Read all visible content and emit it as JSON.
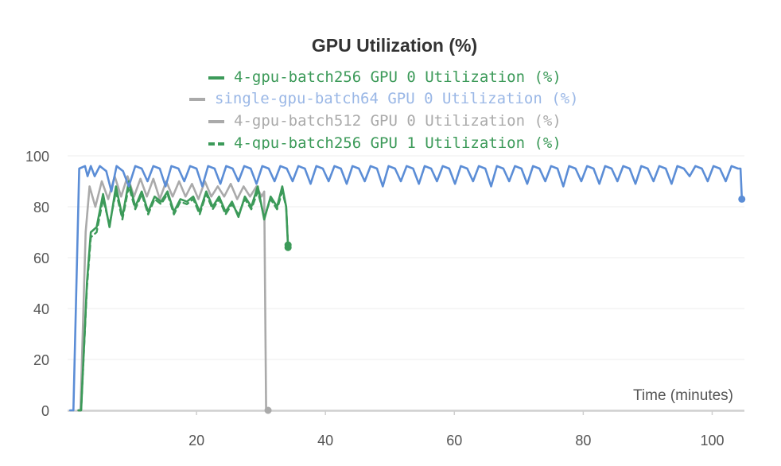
{
  "chart_data": {
    "type": "line",
    "title": "GPU Utilization (%)",
    "xlabel": "Time (minutes)",
    "ylabel": "",
    "xlim": [
      0,
      105
    ],
    "ylim": [
      0,
      100
    ],
    "xticks": [
      20,
      40,
      60,
      80,
      100
    ],
    "yticks": [
      0,
      20,
      40,
      60,
      80,
      100
    ],
    "grid": true,
    "legend_position": "top",
    "series": [
      {
        "name": "4-gpu-batch256 GPU 0 Utilization (%)",
        "color": "#3c9a59",
        "dash": "solid",
        "points": [
          [
            1.7,
            0
          ],
          [
            2.1,
            0
          ],
          [
            3.0,
            50
          ],
          [
            3.6,
            70
          ],
          [
            4.5,
            72
          ],
          [
            5.5,
            85
          ],
          [
            6.5,
            72
          ],
          [
            7.5,
            88
          ],
          [
            8.5,
            76
          ],
          [
            9.5,
            90
          ],
          [
            10.5,
            80
          ],
          [
            11.5,
            86
          ],
          [
            12.5,
            78
          ],
          [
            13.5,
            84
          ],
          [
            14.5,
            82
          ],
          [
            15.5,
            86
          ],
          [
            16.5,
            78
          ],
          [
            17.5,
            83
          ],
          [
            18.5,
            82
          ],
          [
            19.5,
            84
          ],
          [
            20.5,
            78
          ],
          [
            21.5,
            86
          ],
          [
            22.5,
            80
          ],
          [
            23.5,
            84
          ],
          [
            24.5,
            78
          ],
          [
            25.5,
            82
          ],
          [
            26.5,
            76
          ],
          [
            27.5,
            84
          ],
          [
            28.5,
            80
          ],
          [
            29.5,
            88
          ],
          [
            30.5,
            75
          ],
          [
            31.5,
            84
          ],
          [
            32.5,
            80
          ],
          [
            33.3,
            88
          ],
          [
            33.9,
            80
          ],
          [
            34.2,
            64
          ]
        ]
      },
      {
        "name": "single-gpu-batch64 GPU 0 Utilization (%)",
        "color": "#5b8dd6",
        "dash": "solid",
        "points": [
          [
            0.4,
            0
          ],
          [
            0.9,
            0
          ],
          [
            1.8,
            95
          ],
          [
            2.7,
            96
          ],
          [
            3.1,
            92
          ],
          [
            3.6,
            96
          ],
          [
            4.2,
            92
          ],
          [
            5.0,
            96
          ],
          [
            6.0,
            94
          ],
          [
            6.8,
            86
          ],
          [
            7.6,
            96
          ],
          [
            8.6,
            94
          ],
          [
            9.5,
            88
          ],
          [
            10.5,
            96
          ],
          [
            11.5,
            95
          ],
          [
            12.4,
            90
          ],
          [
            13.3,
            96
          ],
          [
            14.3,
            95
          ],
          [
            15.2,
            88
          ],
          [
            16.1,
            96
          ],
          [
            17.2,
            95
          ],
          [
            18.1,
            90
          ],
          [
            19.0,
            96
          ],
          [
            20.0,
            95
          ],
          [
            20.9,
            88
          ],
          [
            21.8,
            96
          ],
          [
            22.8,
            95
          ],
          [
            23.7,
            89
          ],
          [
            24.6,
            96
          ],
          [
            25.6,
            95
          ],
          [
            26.5,
            90
          ],
          [
            27.4,
            96
          ],
          [
            28.4,
            95
          ],
          [
            29.3,
            89
          ],
          [
            30.2,
            96
          ],
          [
            31.2,
            95
          ],
          [
            32.1,
            90
          ],
          [
            33.0,
            96
          ],
          [
            34.0,
            95
          ],
          [
            34.9,
            90
          ],
          [
            35.8,
            96
          ],
          [
            36.8,
            95
          ],
          [
            37.7,
            89
          ],
          [
            38.6,
            96
          ],
          [
            39.6,
            95
          ],
          [
            40.5,
            90
          ],
          [
            41.4,
            96
          ],
          [
            42.4,
            95
          ],
          [
            43.3,
            89
          ],
          [
            44.2,
            96
          ],
          [
            45.2,
            95
          ],
          [
            46.1,
            90
          ],
          [
            47.0,
            96
          ],
          [
            48.0,
            95
          ],
          [
            48.9,
            88
          ],
          [
            49.8,
            96
          ],
          [
            50.8,
            95
          ],
          [
            51.7,
            90
          ],
          [
            52.6,
            96
          ],
          [
            53.6,
            95
          ],
          [
            54.5,
            89
          ],
          [
            55.4,
            96
          ],
          [
            56.4,
            95
          ],
          [
            57.3,
            90
          ],
          [
            58.2,
            96
          ],
          [
            59.2,
            95
          ],
          [
            60.1,
            89
          ],
          [
            61.0,
            96
          ],
          [
            62.0,
            95
          ],
          [
            62.9,
            90
          ],
          [
            63.8,
            96
          ],
          [
            64.8,
            95
          ],
          [
            65.7,
            88
          ],
          [
            66.6,
            96
          ],
          [
            67.6,
            95
          ],
          [
            68.5,
            90
          ],
          [
            69.4,
            96
          ],
          [
            70.4,
            95
          ],
          [
            71.3,
            89
          ],
          [
            72.2,
            96
          ],
          [
            73.2,
            95
          ],
          [
            74.1,
            90
          ],
          [
            75.0,
            96
          ],
          [
            76.0,
            95
          ],
          [
            76.9,
            88
          ],
          [
            77.8,
            96
          ],
          [
            78.8,
            95
          ],
          [
            79.7,
            90
          ],
          [
            80.6,
            96
          ],
          [
            81.6,
            95
          ],
          [
            82.5,
            89
          ],
          [
            83.4,
            96
          ],
          [
            84.4,
            95
          ],
          [
            85.3,
            90
          ],
          [
            86.2,
            96
          ],
          [
            87.2,
            95
          ],
          [
            88.1,
            89
          ],
          [
            89.0,
            96
          ],
          [
            90.0,
            95
          ],
          [
            90.9,
            90
          ],
          [
            91.8,
            96
          ],
          [
            92.8,
            95
          ],
          [
            93.7,
            89
          ],
          [
            94.6,
            96
          ],
          [
            95.6,
            95
          ],
          [
            96.5,
            92
          ],
          [
            97.4,
            96
          ],
          [
            98.4,
            95
          ],
          [
            99.3,
            90
          ],
          [
            100.2,
            96
          ],
          [
            101.2,
            95
          ],
          [
            102.1,
            90
          ],
          [
            103.0,
            96
          ],
          [
            104.0,
            95
          ],
          [
            104.4,
            95
          ],
          [
            104.6,
            83
          ]
        ]
      },
      {
        "name": "4-gpu-batch512 GPU 0 Utilization (%)",
        "color": "#aaaaaa",
        "dash": "solid",
        "points": [
          [
            1.6,
            0
          ],
          [
            2.0,
            0
          ],
          [
            2.8,
            70
          ],
          [
            3.4,
            88
          ],
          [
            4.3,
            80
          ],
          [
            5.3,
            90
          ],
          [
            6.3,
            83
          ],
          [
            7.3,
            92
          ],
          [
            8.3,
            84
          ],
          [
            9.3,
            92
          ],
          [
            10.3,
            84
          ],
          [
            11.3,
            91
          ],
          [
            12.3,
            84
          ],
          [
            13.3,
            91
          ],
          [
            14.3,
            83
          ],
          [
            15.3,
            90
          ],
          [
            16.3,
            84
          ],
          [
            17.3,
            90
          ],
          [
            18.3,
            84
          ],
          [
            19.3,
            89
          ],
          [
            20.3,
            83
          ],
          [
            21.3,
            90
          ],
          [
            22.3,
            84
          ],
          [
            23.3,
            88
          ],
          [
            24.3,
            84
          ],
          [
            25.3,
            89
          ],
          [
            26.3,
            83
          ],
          [
            27.3,
            88
          ],
          [
            28.3,
            84
          ],
          [
            29.3,
            88
          ],
          [
            30.1,
            84
          ],
          [
            30.5,
            86
          ],
          [
            30.8,
            0
          ],
          [
            31.1,
            0
          ]
        ]
      },
      {
        "name": "4-gpu-batch256 GPU 1 Utilization (%)",
        "color": "#3c9a59",
        "dash": "dashed",
        "points": [
          [
            1.7,
            0
          ],
          [
            2.1,
            0
          ],
          [
            3.0,
            48
          ],
          [
            3.6,
            68
          ],
          [
            4.5,
            70
          ],
          [
            5.5,
            83
          ],
          [
            6.5,
            73
          ],
          [
            7.5,
            86
          ],
          [
            8.5,
            75
          ],
          [
            9.5,
            88
          ],
          [
            10.5,
            79
          ],
          [
            11.5,
            85
          ],
          [
            12.5,
            77
          ],
          [
            13.5,
            83
          ],
          [
            14.5,
            81
          ],
          [
            15.5,
            85
          ],
          [
            16.5,
            77
          ],
          [
            17.5,
            82
          ],
          [
            18.5,
            81
          ],
          [
            19.5,
            83
          ],
          [
            20.5,
            77
          ],
          [
            21.5,
            85
          ],
          [
            22.5,
            79
          ],
          [
            23.5,
            83
          ],
          [
            24.5,
            77
          ],
          [
            25.5,
            81
          ],
          [
            26.5,
            77
          ],
          [
            27.5,
            83
          ],
          [
            28.5,
            79
          ],
          [
            29.5,
            86
          ],
          [
            30.5,
            76
          ],
          [
            31.5,
            83
          ],
          [
            32.5,
            79
          ],
          [
            33.3,
            86
          ],
          [
            33.9,
            80
          ],
          [
            34.2,
            65
          ]
        ]
      }
    ]
  }
}
